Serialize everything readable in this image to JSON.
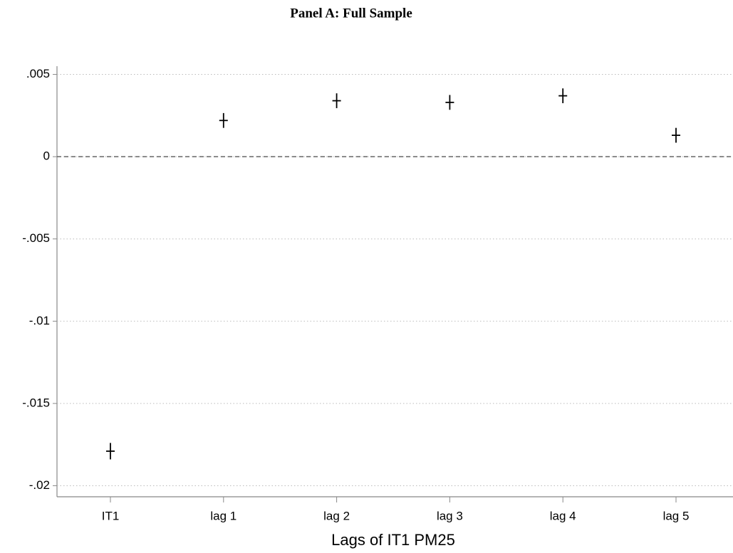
{
  "chart_data": {
    "type": "coefplot",
    "title": "Panel A: Full Sample",
    "x_label": "Lags of IT1 PM25",
    "categories": [
      "IT1",
      "lag 1",
      "lag 2",
      "lag 3",
      "lag 4",
      "lag 5"
    ],
    "series": [
      {
        "color": "#000000",
        "values": [
          -0.0179,
          0.0022,
          0.0034,
          0.0033,
          0.0037,
          0.0013
        ],
        "errors": [
          0.0005,
          0.00045,
          0.00045,
          0.00045,
          0.00045,
          0.00045
        ]
      }
    ],
    "ylim": [
      -0.0205,
      0.0055
    ],
    "yticks": [
      {
        "value": 0.005,
        "label": ".005"
      },
      0,
      {
        "value": -0.005,
        "label": "-.005"
      },
      {
        "value": -0.01,
        "label": "-.01"
      },
      {
        "value": -0.015,
        "label": "-.015"
      },
      {
        "value": -0.02,
        "label": "-.02"
      }
    ],
    "grid": true,
    "reference_line": 0
  }
}
